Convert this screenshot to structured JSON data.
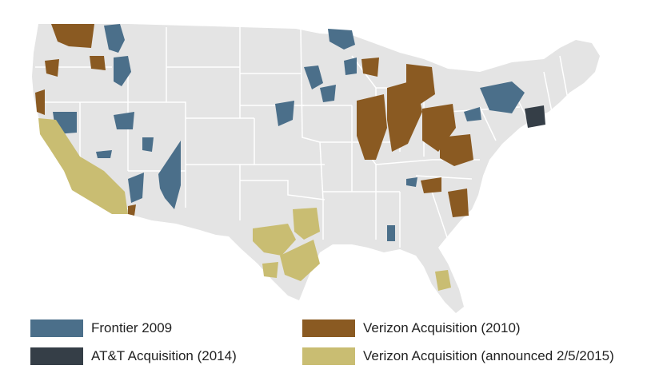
{
  "colors": {
    "land": "#e4e4e4",
    "state_border": "#ffffff",
    "frontier_2009": "#4b6f8a",
    "att_acquisition": "#353e47",
    "verizon_2010": "#8a5a22",
    "verizon_2015": "#c9bd72"
  },
  "legend": [
    {
      "label": "Frontier 2009",
      "color_key": "frontier_2009"
    },
    {
      "label": "AT&T Acquisition (2014)",
      "color_key": "att_acquisition"
    },
    {
      "label": "Verizon Acquisition (2010)",
      "color_key": "verizon_2010"
    },
    {
      "label": "Verizon Acquisition (announced 2/5/2015)",
      "color_key": "verizon_2015"
    }
  ]
}
